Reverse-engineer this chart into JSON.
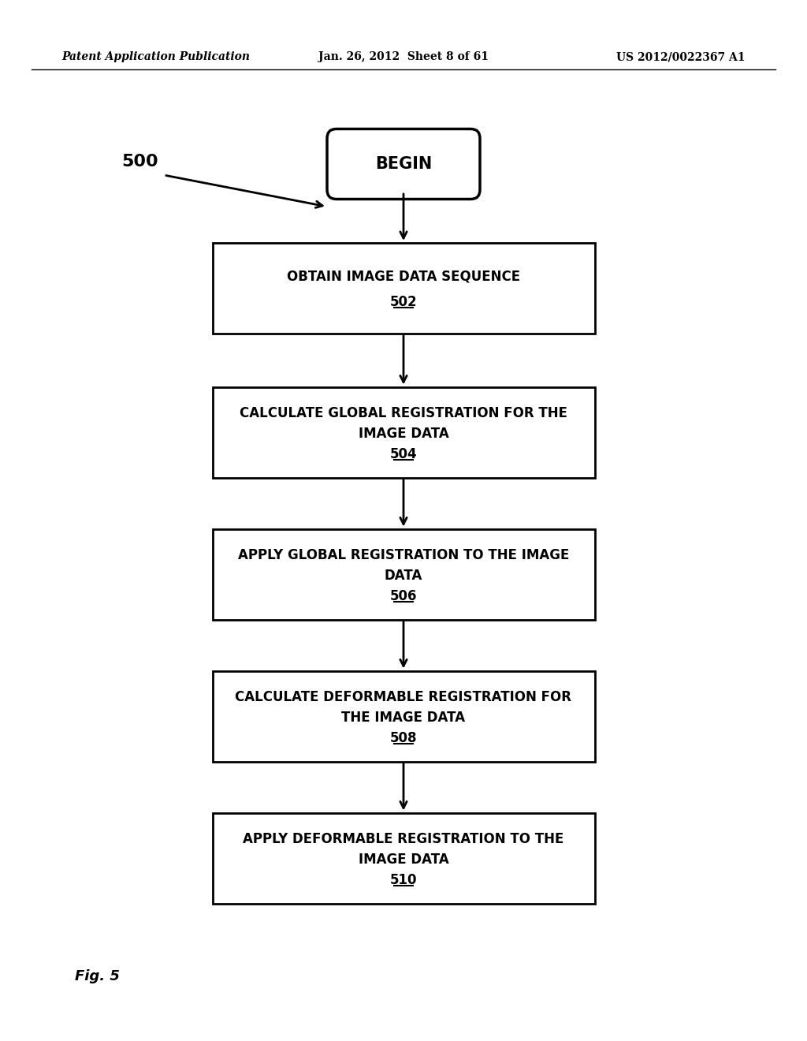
{
  "header_left": "Patent Application Publication",
  "header_center": "Jan. 26, 2012  Sheet 8 of 61",
  "header_right": "US 2012/0022367 A1",
  "fig_label": "Fig. 5",
  "diagram_label": "500",
  "begin_text": "BEGIN",
  "boxes": [
    {
      "line1": "OBTAIN IMAGE DATA SEQUENCE",
      "line2": "",
      "label": "502"
    },
    {
      "line1": "CALCULATE GLOBAL REGISTRATION FOR THE",
      "line2": "IMAGE DATA",
      "label": "504"
    },
    {
      "line1": "APPLY GLOBAL REGISTRATION TO THE IMAGE",
      "line2": "DATA",
      "label": "506"
    },
    {
      "line1": "CALCULATE DEFORMABLE REGISTRATION FOR",
      "line2": "THE IMAGE DATA",
      "label": "508"
    },
    {
      "line1": "APPLY DEFORMABLE REGISTRATION TO THE",
      "line2": "IMAGE DATA",
      "label": "510"
    }
  ],
  "background_color": "#ffffff",
  "box_edge_color": "#000000",
  "text_color": "#000000",
  "arrow_color": "#000000"
}
